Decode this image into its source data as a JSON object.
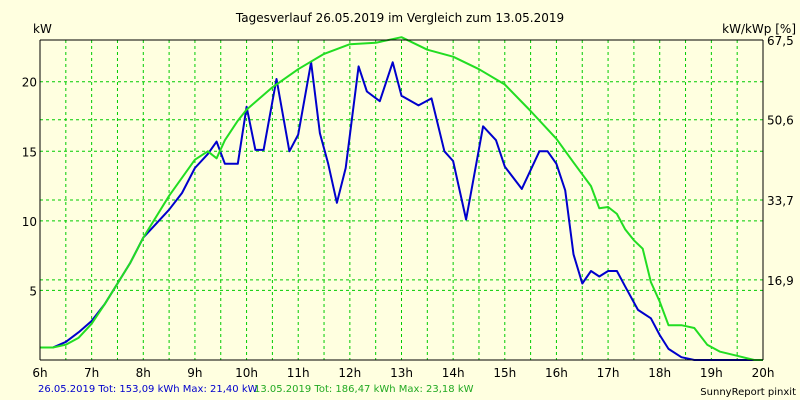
{
  "chart_data": {
    "type": "line",
    "title": "Tagesverlauf 26.05.2019 im Vergleich zum 13.05.2019",
    "ylabel_left": "kW",
    "ylabel_right": "kW/kWp [%]",
    "xlim": [
      6,
      20
    ],
    "ylim": [
      0,
      23
    ],
    "x_ticks": [
      6,
      7,
      8,
      9,
      10,
      11,
      12,
      13,
      14,
      15,
      16,
      17,
      18,
      19,
      20
    ],
    "x_tick_labels": [
      "6h",
      "7h",
      "8h",
      "9h",
      "10h",
      "11h",
      "12h",
      "13h",
      "14h",
      "15h",
      "16h",
      "17h",
      "18h",
      "19h",
      "20h"
    ],
    "y_ticks_left": [
      5,
      10,
      15,
      20
    ],
    "y_tick_labels_left": [
      "5",
      "10",
      "15",
      "20"
    ],
    "y_ticks_right": [
      5.76,
      11.5,
      17.27,
      23.0
    ],
    "y_tick_labels_right": [
      "16,9",
      "33,7",
      "50,6",
      "67,5"
    ],
    "grid": true,
    "colors": {
      "background": "#ffffe0",
      "plot_background": "#ffffe0",
      "grid": "#00cc00",
      "axis": "#000000",
      "series_1": "#0000cc",
      "series_2": "#22dd22"
    },
    "series": [
      {
        "name": "26.05.2019",
        "color": "#0000cc",
        "x": [
          6.0,
          6.25,
          6.5,
          6.75,
          7.0,
          7.25,
          7.5,
          7.75,
          8.0,
          8.25,
          8.5,
          8.75,
          9.0,
          9.25,
          9.42,
          9.58,
          9.83,
          10.0,
          10.17,
          10.33,
          10.58,
          10.83,
          11.0,
          11.25,
          11.42,
          11.58,
          11.75,
          11.92,
          12.17,
          12.33,
          12.58,
          12.83,
          13.0,
          13.33,
          13.58,
          13.83,
          14.0,
          14.25,
          14.58,
          14.83,
          15.0,
          15.33,
          15.67,
          15.83,
          16.0,
          16.17,
          16.33,
          16.5,
          16.67,
          16.83,
          17.0,
          17.17,
          17.33,
          17.58,
          17.83,
          18.0,
          18.17,
          18.42,
          18.67,
          18.92,
          19.17,
          19.42,
          19.67,
          20.0
        ],
        "y": [
          0.9,
          0.9,
          1.3,
          2.0,
          2.8,
          4.0,
          5.5,
          7.0,
          8.8,
          9.8,
          10.8,
          12.0,
          13.8,
          14.8,
          15.7,
          14.1,
          14.1,
          18.2,
          15.1,
          15.1,
          20.2,
          15.0,
          16.2,
          21.4,
          16.3,
          14.1,
          11.3,
          13.8,
          21.1,
          19.3,
          18.6,
          21.4,
          19.0,
          18.3,
          18.8,
          15.0,
          14.3,
          10.1,
          16.8,
          15.8,
          13.9,
          12.3,
          15.0,
          15.0,
          14.1,
          12.2,
          7.6,
          5.5,
          6.4,
          6.0,
          6.4,
          6.4,
          5.3,
          3.6,
          3.0,
          1.8,
          0.8,
          0.2,
          0.0,
          0.0,
          0.0,
          0.0,
          0.0,
          0.0
        ]
      },
      {
        "name": "13.05.2019",
        "color": "#22dd22",
        "x": [
          6.0,
          6.25,
          6.5,
          6.75,
          7.0,
          7.25,
          7.5,
          7.75,
          8.0,
          8.5,
          9.0,
          9.25,
          9.42,
          9.58,
          9.83,
          10.0,
          10.5,
          11.0,
          11.5,
          12.0,
          12.5,
          13.0,
          13.5,
          14.0,
          14.5,
          15.0,
          15.5,
          16.0,
          16.33,
          16.67,
          16.83,
          17.0,
          17.17,
          17.33,
          17.5,
          17.67,
          17.83,
          18.0,
          18.17,
          18.42,
          18.67,
          18.92,
          19.17,
          19.5,
          19.83,
          20.0
        ],
        "y": [
          0.9,
          0.9,
          1.1,
          1.6,
          2.6,
          4.0,
          5.5,
          7.0,
          8.8,
          11.8,
          14.4,
          15.0,
          14.5,
          15.8,
          17.2,
          18.0,
          19.6,
          20.9,
          22.0,
          22.7,
          22.8,
          23.2,
          22.3,
          21.8,
          20.9,
          19.8,
          17.9,
          15.9,
          14.2,
          12.5,
          10.9,
          11.0,
          10.5,
          9.4,
          8.6,
          8.0,
          5.6,
          4.2,
          2.5,
          2.5,
          2.3,
          1.1,
          0.6,
          0.3,
          0.0,
          0.0
        ]
      }
    ]
  },
  "footer": {
    "legend_1": "26.05.2019 Tot: 153,09 kWh Max: 21,40 kW",
    "legend_2": "13.05.2019 Tot: 186,47 kWh Max: 23,18 kW",
    "brand": "SunnyReport pinxit"
  }
}
